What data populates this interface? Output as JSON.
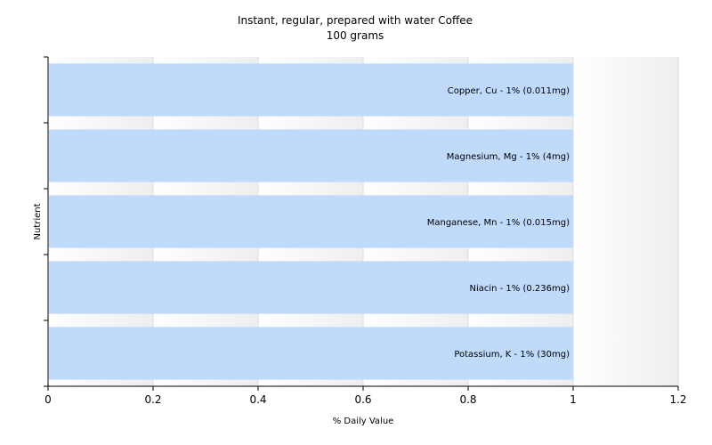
{
  "chart_data": {
    "type": "bar",
    "orientation": "horizontal",
    "title": "Instant, regular, prepared with water Coffee",
    "subtitle": "100 grams",
    "xlabel": "% Daily Value",
    "ylabel": "Nutrient",
    "xlim": [
      0,
      1.2
    ],
    "xticks": [
      "0",
      "0.2",
      "0.4",
      "0.6",
      "0.8",
      "1",
      "1.2"
    ],
    "categories": [
      "Copper, Cu",
      "Magnesium, Mg",
      "Manganese, Mn",
      "Niacin",
      "Potassium, K"
    ],
    "values": [
      1,
      1,
      1,
      1,
      1
    ],
    "bar_labels": [
      "Copper, Cu - 1% (0.011mg)",
      "Magnesium, Mg - 1% (4mg)",
      "Manganese, Mn - 1% (0.015mg)",
      "Niacin - 1% (0.236mg)",
      "Potassium, K - 1% (30mg)"
    ],
    "bar_color": "#c0dafc",
    "grid": true
  }
}
